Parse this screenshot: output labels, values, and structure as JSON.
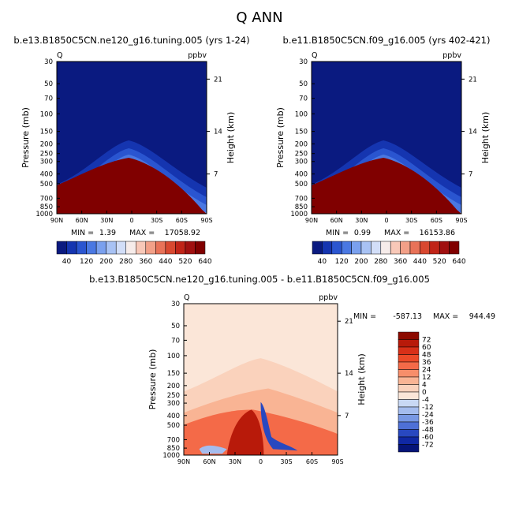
{
  "page_title": "Q ANN",
  "chart_data": [
    {
      "type": "heatmap",
      "title": "b.e13.B1850C5CN.ne120_g16.tuning.005 (yrs 1-24)",
      "variable": "Q",
      "units": "ppbv",
      "ylabel": "Pressure (mb)",
      "ylabel_right": "Height (km)",
      "x_ticks": [
        "90N",
        "60N",
        "30N",
        "0",
        "30S",
        "60S",
        "90S"
      ],
      "y_ticks": [
        "30",
        "50",
        "70",
        "100",
        "150",
        "200",
        "250",
        "300",
        "400",
        "500",
        "700",
        "850",
        "1000"
      ],
      "y_ticks_right": [
        "21",
        "14",
        "7"
      ],
      "min_label": "MIN =",
      "min_value": "1.39",
      "max_label": "MAX =",
      "max_value": "17058.92",
      "colorbar_labels": [
        "40",
        "120",
        "200",
        "280",
        "360",
        "440",
        "520",
        "640"
      ],
      "colorbar_colors": [
        "#0a1a80",
        "#1535b0",
        "#2a55d0",
        "#4a78e2",
        "#7aa0ee",
        "#a8c2f4",
        "#d2def8",
        "#f6ecea",
        "#f8c8b8",
        "#f2a088",
        "#e87258",
        "#d84830",
        "#c02418",
        "#a01010",
        "#800000"
      ]
    },
    {
      "type": "heatmap",
      "title": "b.e11.B1850C5CN.f09_g16.005 (yrs 402-421)",
      "variable": "Q",
      "units": "ppbv",
      "ylabel": "Pressure (mb)",
      "ylabel_right": "Height (km)",
      "x_ticks": [
        "90N",
        "60N",
        "30N",
        "0",
        "30S",
        "60S",
        "90S"
      ],
      "y_ticks": [
        "30",
        "50",
        "70",
        "100",
        "150",
        "200",
        "250",
        "300",
        "400",
        "500",
        "700",
        "850",
        "1000"
      ],
      "y_ticks_right": [
        "21",
        "14",
        "7"
      ],
      "min_label": "MIN =",
      "min_value": "0.99",
      "max_label": "MAX =",
      "max_value": "16153.86",
      "colorbar_labels": [
        "40",
        "120",
        "200",
        "280",
        "360",
        "440",
        "520",
        "640"
      ],
      "colorbar_colors": [
        "#0a1a80",
        "#1535b0",
        "#2a55d0",
        "#4a78e2",
        "#7aa0ee",
        "#a8c2f4",
        "#d2def8",
        "#f6ecea",
        "#f8c8b8",
        "#f2a088",
        "#e87258",
        "#d84830",
        "#c02418",
        "#a01010",
        "#800000"
      ]
    },
    {
      "type": "heatmap",
      "title": "b.e13.B1850C5CN.ne120_g16.tuning.005 - b.e11.B1850C5CN.f09_g16.005",
      "variable": "Q",
      "units": "ppbv",
      "ylabel": "Pressure (mb)",
      "ylabel_right": "Height (km)",
      "x_ticks": [
        "90N",
        "60N",
        "30N",
        "0",
        "30S",
        "60S",
        "90S"
      ],
      "y_ticks": [
        "30",
        "50",
        "70",
        "100",
        "150",
        "200",
        "250",
        "300",
        "400",
        "500",
        "700",
        "850",
        "1000"
      ],
      "y_ticks_right": [
        "21",
        "14",
        "7"
      ],
      "min_label": "MIN =",
      "min_value": "-587.13",
      "max_label": "MAX =",
      "max_value": "944.49",
      "colorbar_labels": [
        "72",
        "60",
        "48",
        "36",
        "24",
        "12",
        "4",
        "0",
        "-4",
        "-12",
        "-24",
        "-36",
        "-48",
        "-60",
        "-72"
      ],
      "colorbar_colors": [
        "#8c0a00",
        "#b81a0a",
        "#d83018",
        "#ec4a28",
        "#f46a48",
        "#f78e6a",
        "#f9b494",
        "#fad2bc",
        "#fbe6d8",
        "#c8d8f4",
        "#a4bcee",
        "#7898e4",
        "#4e70d6",
        "#2848c0",
        "#1028a4",
        "#061478"
      ]
    }
  ]
}
